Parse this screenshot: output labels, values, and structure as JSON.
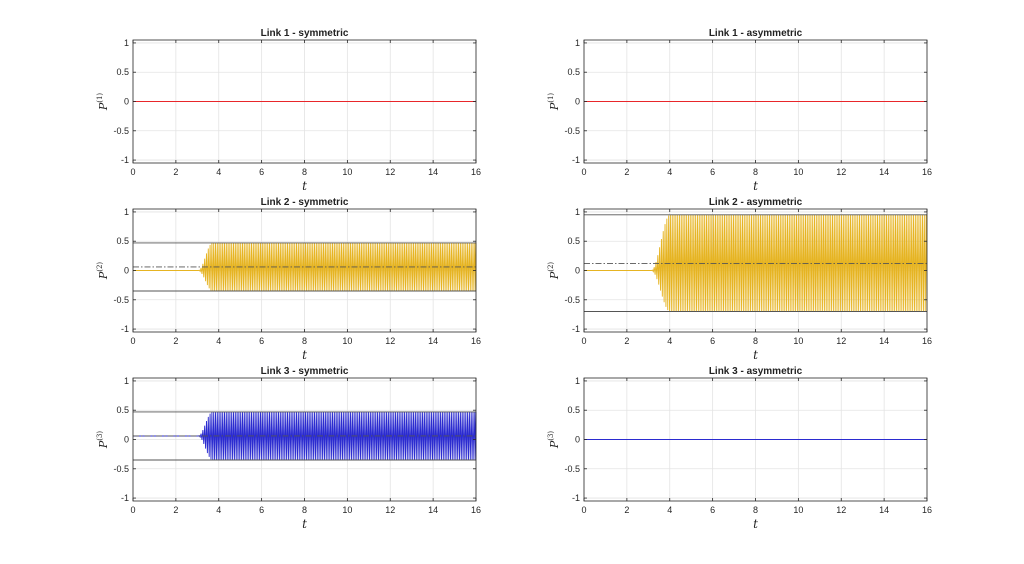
{
  "chart_data": [
    {
      "type": "line",
      "title": "Link 1 - symmetric",
      "xlabel": "t",
      "ylabel": "P",
      "ylabel_superscript": "(1)",
      "xlim": [
        0,
        16
      ],
      "ylim": [
        -1,
        1
      ],
      "xticks": [
        "0",
        "2",
        "4",
        "6",
        "8",
        "10",
        "12",
        "14",
        "16"
      ],
      "yticks": [
        "-1",
        "-0.5",
        "0",
        "0.5",
        "1"
      ],
      "grid": true,
      "series": [
        {
          "color": "#e8262a",
          "style": "flat",
          "value": 0
        }
      ],
      "reference_lines": []
    },
    {
      "type": "line",
      "title": "Link 1 - asymmetric",
      "xlabel": "t",
      "ylabel": "P",
      "ylabel_superscript": "(1)",
      "xlim": [
        0,
        16
      ],
      "ylim": [
        -1,
        1
      ],
      "xticks": [
        "0",
        "2",
        "4",
        "6",
        "8",
        "10",
        "12",
        "14",
        "16"
      ],
      "yticks": [
        "-1",
        "-0.5",
        "0",
        "0.5",
        "1"
      ],
      "grid": true,
      "series": [
        {
          "color": "#e8262a",
          "style": "flat",
          "value": 0
        }
      ],
      "reference_lines": []
    },
    {
      "type": "line",
      "title": "Link 2 - symmetric",
      "xlabel": "t",
      "ylabel": "P",
      "ylabel_superscript": "(2)",
      "xlim": [
        0,
        16
      ],
      "ylim": [
        -1,
        1
      ],
      "xticks": [
        "0",
        "2",
        "4",
        "6",
        "8",
        "10",
        "12",
        "14",
        "16"
      ],
      "yticks": [
        "-1",
        "-0.5",
        "0",
        "0.5",
        "1"
      ],
      "grid": true,
      "series": [
        {
          "color": "#e6b422",
          "style": "oscillation",
          "onset_t": 3.05,
          "full_t": 3.7,
          "center": 0.06,
          "upper": 0.47,
          "lower": -0.35,
          "base": 0
        }
      ],
      "reference_lines": [
        {
          "value": 0.47,
          "dash": "solid",
          "color": "#555555"
        },
        {
          "value": -0.35,
          "dash": "solid",
          "color": "#555555"
        },
        {
          "value": 0.06,
          "dash": "dashdot",
          "color": "#555555"
        }
      ]
    },
    {
      "type": "line",
      "title": "Link 2 - asymmetric",
      "xlabel": "t",
      "ylabel": "P",
      "ylabel_superscript": "(2)",
      "xlim": [
        0,
        16
      ],
      "ylim": [
        -1,
        1
      ],
      "xticks": [
        "0",
        "2",
        "4",
        "6",
        "8",
        "10",
        "12",
        "14",
        "16"
      ],
      "yticks": [
        "-1",
        "-0.5",
        "0",
        "0.5",
        "1"
      ],
      "grid": true,
      "series": [
        {
          "color": "#e6b422",
          "style": "oscillation",
          "onset_t": 3.15,
          "full_t": 4.0,
          "center": 0.12,
          "upper": 0.95,
          "lower": -0.7,
          "base": 0
        }
      ],
      "reference_lines": [
        {
          "value": 0.95,
          "dash": "solid",
          "color": "#555555"
        },
        {
          "value": -0.7,
          "dash": "solid",
          "color": "#555555"
        },
        {
          "value": 0.12,
          "dash": "dashdot",
          "color": "#555555"
        }
      ]
    },
    {
      "type": "line",
      "title": "Link 3 - symmetric",
      "xlabel": "t",
      "ylabel": "P",
      "ylabel_superscript": "(3)",
      "xlim": [
        0,
        16
      ],
      "ylim": [
        -1,
        1
      ],
      "xticks": [
        "0",
        "2",
        "4",
        "6",
        "8",
        "10",
        "12",
        "14",
        "16"
      ],
      "yticks": [
        "-1",
        "-0.5",
        "0",
        "0.5",
        "1"
      ],
      "grid": true,
      "series": [
        {
          "color": "#2b2bd0",
          "style": "oscillation",
          "onset_t": 3.05,
          "full_t": 3.7,
          "center": 0.06,
          "upper": 0.47,
          "lower": -0.35,
          "base": 0.06
        }
      ],
      "reference_lines": [
        {
          "value": 0.47,
          "dash": "solid",
          "color": "#555555"
        },
        {
          "value": -0.35,
          "dash": "solid",
          "color": "#555555"
        },
        {
          "value": 0.06,
          "dash": "dashdot",
          "color": "#555555"
        }
      ]
    },
    {
      "type": "line",
      "title": "Link 3 - asymmetric",
      "xlabel": "t",
      "ylabel": "P",
      "ylabel_superscript": "(3)",
      "xlim": [
        0,
        16
      ],
      "ylim": [
        -1,
        1
      ],
      "xticks": [
        "0",
        "2",
        "4",
        "6",
        "8",
        "10",
        "12",
        "14",
        "16"
      ],
      "yticks": [
        "-1",
        "-0.5",
        "0",
        "0.5",
        "1"
      ],
      "grid": true,
      "series": [
        {
          "color": "#2b2bd0",
          "style": "flat",
          "value": 0
        }
      ],
      "reference_lines": []
    }
  ]
}
